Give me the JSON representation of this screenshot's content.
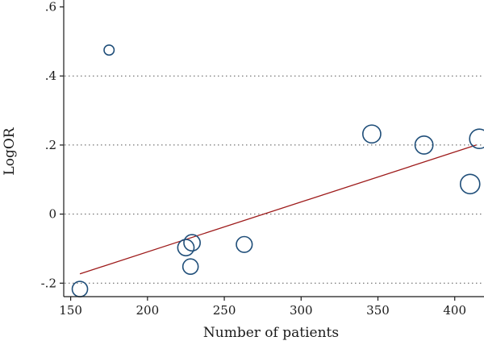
{
  "chart_data": {
    "type": "scatter",
    "title": "",
    "xlabel": "Number of patients",
    "ylabel": "LogOR",
    "xlim": [
      146,
      418
    ],
    "ylim": [
      -0.225,
      0.62
    ],
    "x_ticks": [
      150,
      200,
      250,
      300,
      350,
      400
    ],
    "x_tick_labels": [
      "150",
      "200",
      "250",
      "300",
      "350",
      "400"
    ],
    "y_ticks": [
      -0.2,
      0,
      0.2,
      0.4,
      0.6
    ],
    "y_tick_labels": [
      "-.2",
      "0",
      ".2",
      ".4",
      ".6"
    ],
    "grid": "horizontal dotted",
    "points": [
      {
        "x": 156,
        "y": -0.217,
        "weight": 0.5
      },
      {
        "x": 175,
        "y": 0.475,
        "weight": 0.1
      },
      {
        "x": 225,
        "y": -0.097,
        "weight": 0.6
      },
      {
        "x": 228,
        "y": -0.152,
        "weight": 0.5
      },
      {
        "x": 229,
        "y": -0.083,
        "weight": 0.6
      },
      {
        "x": 263,
        "y": -0.088,
        "weight": 0.55
      },
      {
        "x": 346,
        "y": 0.232,
        "weight": 0.8
      },
      {
        "x": 380,
        "y": 0.2,
        "weight": 0.8
      },
      {
        "x": 410,
        "y": 0.087,
        "weight": 1.0
      },
      {
        "x": 416,
        "y": 0.218,
        "weight": 1.0
      }
    ],
    "fit_line": {
      "x": [
        156,
        414
      ],
      "y": [
        -0.173,
        0.2
      ]
    },
    "colors": {
      "marker": "#1f4e79",
      "fit_line": "#9e1b1b",
      "grid": "#555555",
      "axis": "#1a1a1a"
    }
  }
}
